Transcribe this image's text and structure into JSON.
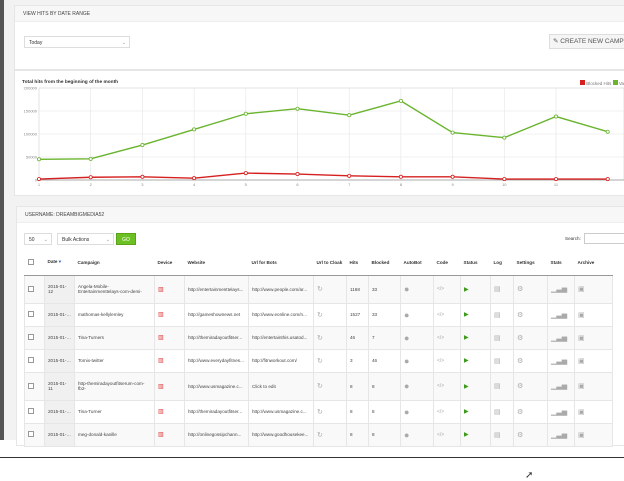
{
  "date_panel": {
    "title": "VIEW HITS BY DATE RANGE",
    "range_select": "Today",
    "create_button": "CREATE NEW CAMP"
  },
  "chart_data": {
    "type": "line",
    "title": "Total hits from the beginning of the month",
    "x": [
      1,
      2,
      3,
      4,
      5,
      6,
      7,
      8,
      9,
      10,
      11,
      12
    ],
    "xticks": [
      "1",
      "2",
      "3",
      "4",
      "5",
      "6",
      "7",
      "8",
      "9",
      "10",
      "11"
    ],
    "yticks": [
      "0",
      "50000",
      "100000",
      "150000",
      "200000"
    ],
    "ylim": [
      0,
      200000
    ],
    "grid": true,
    "legend": "top-right",
    "series": [
      {
        "name": "Blocked Hits",
        "color": "#d62020",
        "values": [
          2000,
          6000,
          7000,
          4000,
          15000,
          13000,
          9000,
          7000,
          7000,
          2000,
          2000,
          2000
        ]
      },
      {
        "name": "Va",
        "color": "#6ab42e",
        "values": [
          45000,
          46000,
          76000,
          110000,
          144000,
          155000,
          141000,
          172000,
          103000,
          92000,
          138000,
          105000
        ]
      }
    ]
  },
  "table_panel": {
    "title": "USERNAME: DREAMBIGMEDIA52",
    "page_size": "50",
    "bulk_actions": "Bulk Actions",
    "go_label": "GO",
    "search_label": "Search:",
    "search_value": ""
  },
  "columns": [
    "Date",
    "Campaign",
    "Device",
    "Website",
    "Url for Bots",
    "Url to Cloak",
    "Hits",
    "Blocked",
    "AutoBot",
    "Code",
    "Status",
    "Log",
    "Settings",
    "Stats",
    "Archive"
  ],
  "rows": [
    {
      "date": "2015-01-12",
      "campaign": "Angela-Mobile-Entertainmenttelays-com-demi-",
      "website": "http://entertainmenttelays...",
      "bots": "http://www.people.com/ar...",
      "hits": "1168",
      "blocked": "33"
    },
    {
      "date": "2015-01-11",
      "campaign": "mathomas-kellylemley",
      "website": "http://gameshownews.net",
      "bots": "http://www.eonline.com/n...",
      "hits": "1527",
      "blocked": "33"
    },
    {
      "date": "2015-01-11",
      "campaign": "Tina-Turners",
      "website": "http://themiradayoutfitser...",
      "bots": "http://entertainthis.usatod...",
      "hits": "46",
      "blocked": "7"
    },
    {
      "date": "2015-01-11",
      "campaign": "Tomix-twitter",
      "website": "http://www.everydayfitnes...",
      "bots": "http://fitnworkout.com/",
      "hits": "3",
      "blocked": "46"
    },
    {
      "date": "2015-01-11",
      "campaign": "http-themiradayoutfitserum-com-fb2-",
      "website": "http://www.usmagazine.c...",
      "bots": "Click to edit",
      "hits": "8",
      "blocked": "8"
    },
    {
      "date": "2015-01-11",
      "campaign": "Tina-Turner",
      "website": "http://themiradayoutfitser...",
      "bots": "http://www.usmagazine.c...",
      "hits": "8",
      "blocked": "8"
    },
    {
      "date": "2015-01-09",
      "campaign": "meg-donald-kanille",
      "website": "http://onlinegossipchann...",
      "bots": "http://www.goodhousekee...",
      "hits": "8",
      "blocked": "8"
    }
  ]
}
